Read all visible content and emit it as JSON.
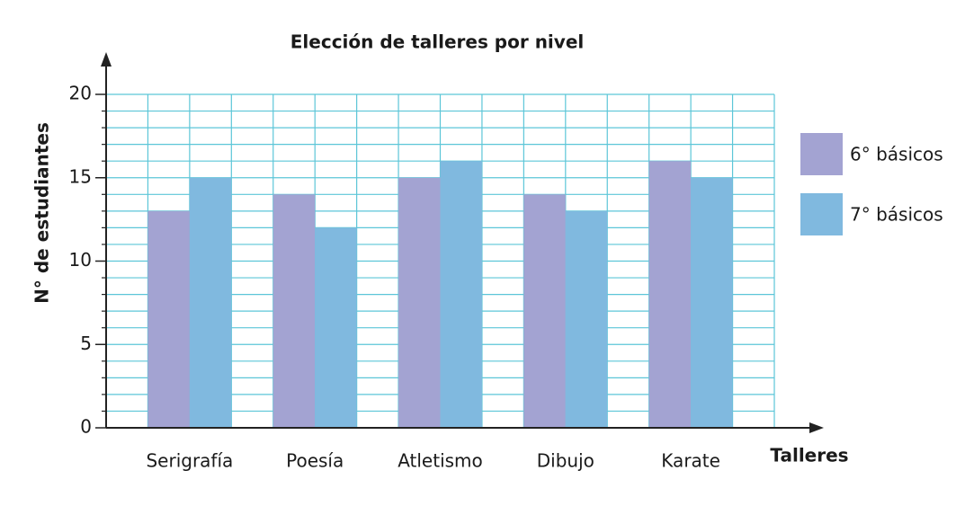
{
  "chart_data": {
    "type": "bar",
    "title": "Elección de talleres por nivel",
    "y_label": "N° de estudiantes",
    "x_label": "Talleres",
    "categories": [
      "Serigrafía",
      "Poesía",
      "Atletismo",
      "Dibujo",
      "Karate"
    ],
    "series": [
      {
        "name": "6° básicos",
        "color": "#a3a3d2",
        "values": [
          13,
          14,
          15,
          14,
          16
        ]
      },
      {
        "name": "7° básicos",
        "color": "#80b9df",
        "values": [
          15,
          12,
          16,
          13,
          15
        ]
      }
    ],
    "ylim": [
      0,
      20
    ],
    "yticks": [
      0,
      5,
      10,
      15,
      20
    ],
    "grid": true,
    "grid_color": "#5cc6d8"
  }
}
